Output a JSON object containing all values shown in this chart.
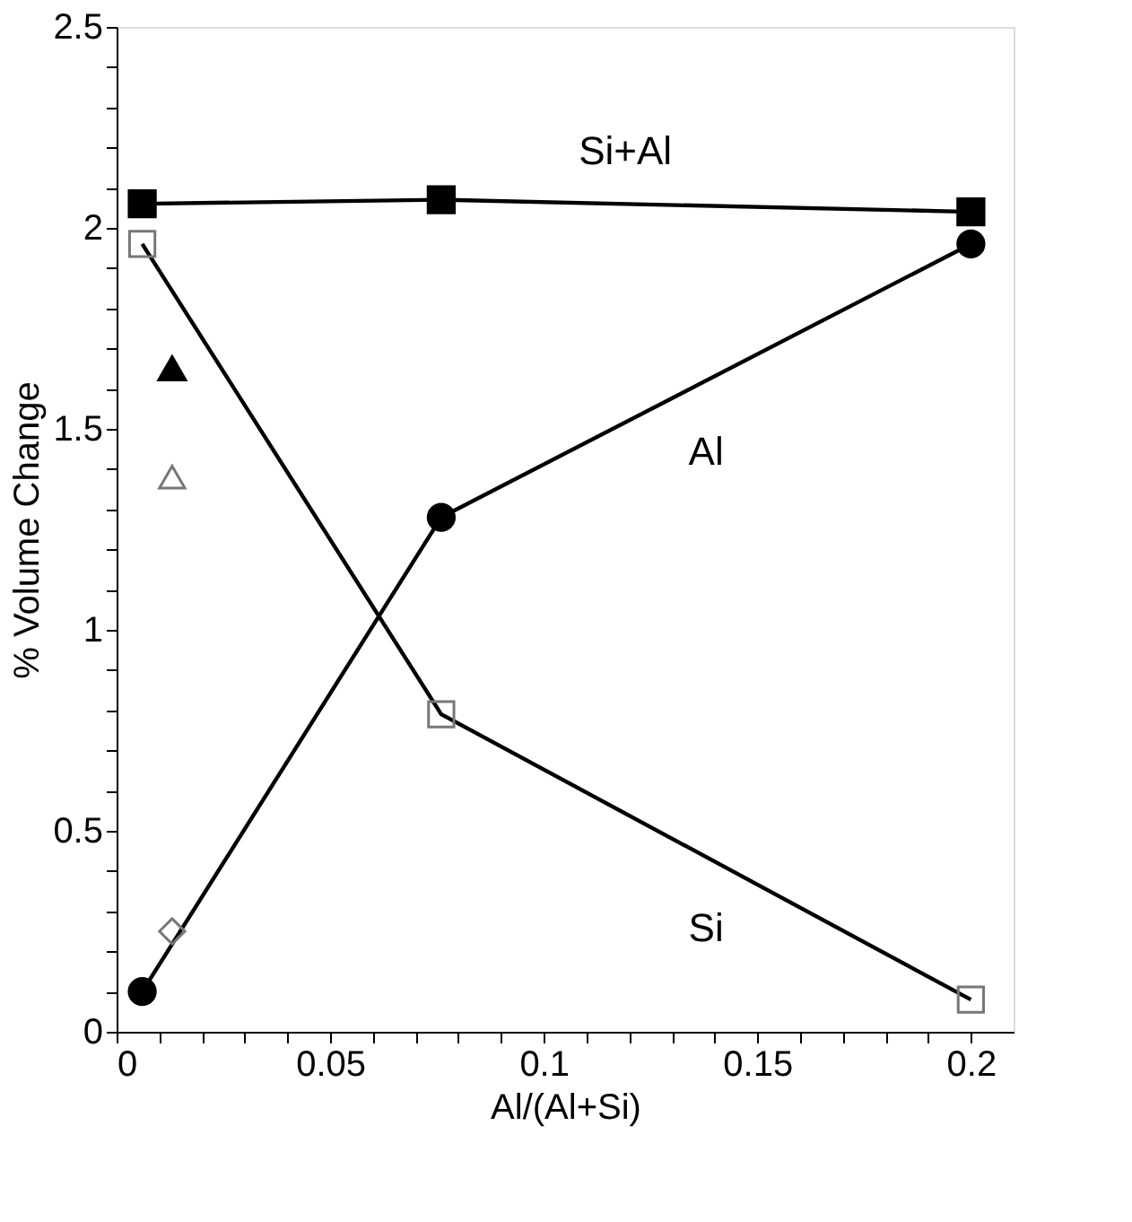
{
  "chart_data": {
    "type": "line",
    "xlabel": "Al/(Al+Si)",
    "ylabel": "% Volume Change",
    "xlim": [
      0,
      0.21
    ],
    "ylim": [
      0,
      2.5
    ],
    "xticks": [
      0,
      {
        "value": 0.01,
        "label": null
      },
      {
        "value": 0.02,
        "label": null
      },
      {
        "value": 0.03,
        "label": null
      },
      {
        "value": 0.04,
        "label": null
      },
      0.05,
      {
        "value": 0.06,
        "label": null
      },
      {
        "value": 0.07,
        "label": null
      },
      {
        "value": 0.08,
        "label": null
      },
      {
        "value": 0.09,
        "label": null
      },
      0.1,
      {
        "value": 0.11,
        "label": null
      },
      {
        "value": 0.12,
        "label": null
      },
      {
        "value": 0.13,
        "label": null
      },
      {
        "value": 0.14,
        "label": null
      },
      0.15,
      {
        "value": 0.16,
        "label": null
      },
      {
        "value": 0.17,
        "label": null
      },
      {
        "value": 0.18,
        "label": null
      },
      {
        "value": 0.19,
        "label": null
      },
      0.2
    ],
    "yticks": [
      0,
      {
        "value": 0.1,
        "label": null
      },
      {
        "value": 0.2,
        "label": null
      },
      {
        "value": 0.3,
        "label": null
      },
      {
        "value": 0.4,
        "label": null
      },
      0.5,
      {
        "value": 0.6,
        "label": null
      },
      {
        "value": 0.7,
        "label": null
      },
      {
        "value": 0.8,
        "label": null
      },
      {
        "value": 0.9,
        "label": null
      },
      1,
      {
        "value": 1.1,
        "label": null
      },
      {
        "value": 1.2,
        "label": null
      },
      {
        "value": 1.3,
        "label": null
      },
      {
        "value": 1.4,
        "label": null
      },
      1.5,
      {
        "value": 1.6,
        "label": null
      },
      {
        "value": 1.7,
        "label": null
      },
      {
        "value": 1.8,
        "label": null
      },
      {
        "value": 1.9,
        "label": null
      },
      2,
      {
        "value": 2.1,
        "label": null
      },
      {
        "value": 2.2,
        "label": null
      },
      {
        "value": 2.3,
        "label": null
      },
      {
        "value": 2.4,
        "label": null
      },
      2.5
    ],
    "grid": false,
    "series": [
      {
        "name": "Si+Al",
        "marker": "square",
        "color": "#000000",
        "x": [
          0.006,
          0.076,
          0.2
        ],
        "values": [
          2.06,
          2.07,
          2.04
        ]
      },
      {
        "name": "Al",
        "marker": "circle",
        "color": "#000000",
        "x": [
          0.006,
          0.076,
          0.2
        ],
        "values": [
          0.1,
          1.28,
          1.96
        ]
      },
      {
        "name": "Si",
        "marker": "square",
        "color": "#777777",
        "x": [
          0.006,
          0.076,
          0.2
        ],
        "values": [
          1.96,
          0.79,
          0.08
        ]
      },
      {
        "type": "scatter",
        "marker": "triangle",
        "color": "#000000",
        "x": [
          0.013
        ],
        "values": [
          1.65
        ]
      },
      {
        "type": "scatter",
        "marker": "triangle",
        "color": "#777777",
        "x": [
          0.013
        ],
        "values": [
          1.38
        ]
      },
      {
        "type": "scatter",
        "marker": "diamond",
        "color": "#777777",
        "x": [
          0.013
        ],
        "values": [
          0.25
        ]
      }
    ]
  }
}
